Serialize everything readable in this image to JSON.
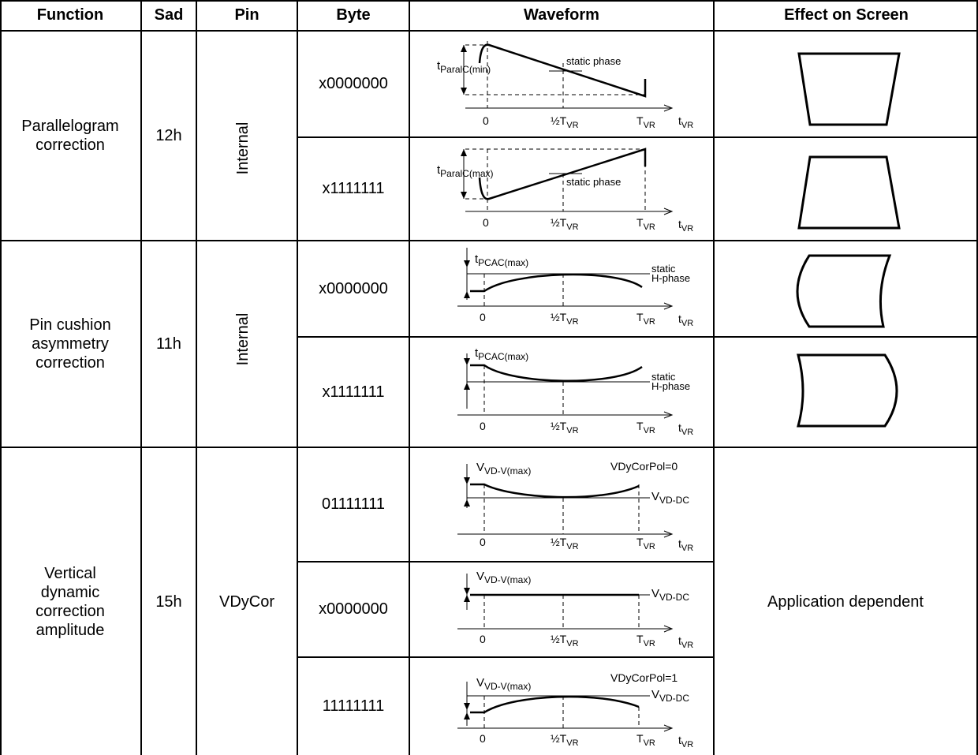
{
  "headers": {
    "function": "Function",
    "sad": "Sad",
    "pin": "Pin",
    "byte": "Byte",
    "waveform": "Waveform",
    "effect": "Effect on Screen"
  },
  "groups": [
    {
      "function": "Parallelogram correction",
      "sad": "12h",
      "pin": "Internal",
      "rows": [
        {
          "byte": "x0000000",
          "amp_label": "t",
          "amp_sub": "ParalC(min)",
          "phase_label": "static phase"
        },
        {
          "byte": "x1111111",
          "amp_label": "t",
          "amp_sub": "ParalC(max)",
          "phase_label": "static phase"
        }
      ]
    },
    {
      "function": "Pin cushion asymmetry correction",
      "sad": "11h",
      "pin": "Internal",
      "rows": [
        {
          "byte": "x0000000",
          "amp_label": "t",
          "amp_sub": "PCAC(max)",
          "phase_label_1": "static",
          "phase_label_2": "H-phase"
        },
        {
          "byte": "x1111111",
          "amp_label": "t",
          "amp_sub": "PCAC(max)",
          "phase_label_1": "static",
          "phase_label_2": "H-phase"
        }
      ]
    },
    {
      "function": "Vertical dynamic correction amplitude",
      "sad": "15h",
      "pin": "VDyCor",
      "effect": "Application dependent",
      "rows": [
        {
          "byte": "01111111",
          "amp_label": "V",
          "amp_sub": "VD-V(max)",
          "dc_label": "V",
          "dc_sub": "VD-DC",
          "pol": "VDyCorPol=0"
        },
        {
          "byte": "x0000000",
          "amp_label": "V",
          "amp_sub": "VD-V(max)",
          "dc_label": "V",
          "dc_sub": "VD-DC"
        },
        {
          "byte": "11111111",
          "amp_label": "V",
          "amp_sub": "VD-V(max)",
          "dc_label": "V",
          "dc_sub": "VD-DC",
          "pol": "VDyCorPol=1"
        }
      ]
    }
  ],
  "axis": {
    "zero": "0",
    "half": "½T",
    "half_sub": "VR",
    "full": "T",
    "full_sub": "VR",
    "t": "t",
    "t_sub": "VR"
  }
}
